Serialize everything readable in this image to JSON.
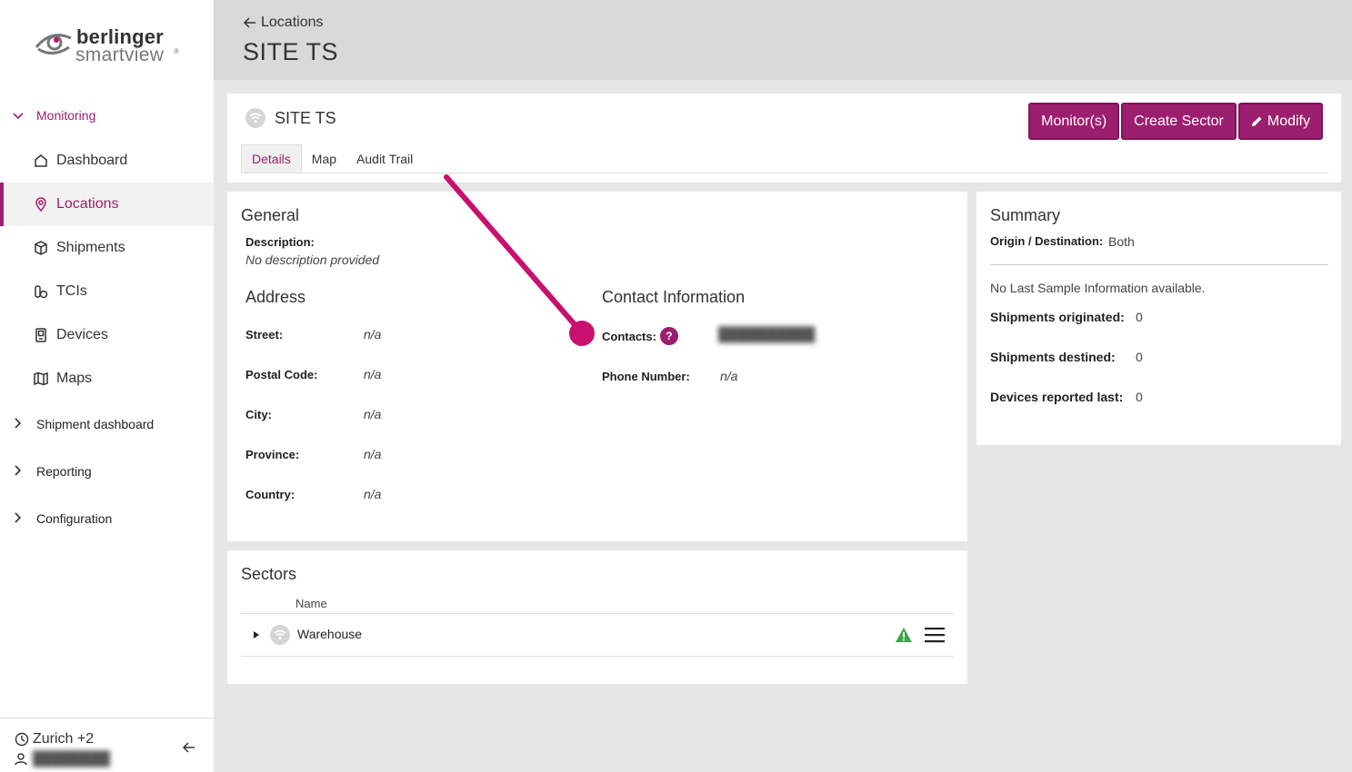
{
  "brand": {
    "name_top": "berlinger",
    "name_bottom": "smartview",
    "reg": "®"
  },
  "sidebar": {
    "monitoring_label": "Monitoring",
    "items": [
      {
        "label": "Dashboard",
        "icon": "home-icon"
      },
      {
        "label": "Locations",
        "icon": "location-pin-icon",
        "active": true
      },
      {
        "label": "Shipments",
        "icon": "package-icon"
      },
      {
        "label": "TCIs",
        "icon": "tci-icon"
      },
      {
        "label": "Devices",
        "icon": "device-icon"
      },
      {
        "label": "Maps",
        "icon": "map-icon"
      }
    ],
    "groups": [
      "Shipment dashboard",
      "Reporting",
      "Configuration"
    ],
    "footer": {
      "timezone": "Zurich +2"
    }
  },
  "header": {
    "back_label": "Locations",
    "title": "SITE TS"
  },
  "site": {
    "name": "SITE TS",
    "tabs": [
      "Details",
      "Map",
      "Audit Trail"
    ],
    "active_tab": "Details",
    "buttons": {
      "monitors": "Monitor(s)",
      "create_sector": "Create Sector",
      "modify": "Modify"
    }
  },
  "general": {
    "title": "General",
    "description_label": "Description:",
    "description_value": "No description provided",
    "address_title": "Address",
    "address": [
      {
        "label": "Street:",
        "value": "n/a"
      },
      {
        "label": "Postal Code:",
        "value": "n/a"
      },
      {
        "label": "City:",
        "value": "n/a"
      },
      {
        "label": "Province:",
        "value": "n/a"
      },
      {
        "label": "Country:",
        "value": "n/a"
      }
    ],
    "contact_title": "Contact Information",
    "contacts_label": "Contacts:",
    "help_glyph": "?",
    "phone_label": "Phone Number:",
    "phone_value": "n/a"
  },
  "summary": {
    "title": "Summary",
    "origin_label": "Origin / Destination:",
    "origin_value": "Both",
    "no_sample": "No Last Sample Information available.",
    "rows": [
      {
        "label": "Shipments originated:",
        "value": "0"
      },
      {
        "label": "Shipments destined:",
        "value": "0"
      },
      {
        "label": "Devices reported last:",
        "value": "0"
      }
    ]
  },
  "sectors": {
    "title": "Sectors",
    "column_name": "Name",
    "rows": [
      {
        "name": "Warehouse",
        "status": "warning"
      }
    ]
  },
  "colors": {
    "accent": "#9b1f6e",
    "annotation": "#c8106e",
    "warning": "#3fa34d"
  }
}
